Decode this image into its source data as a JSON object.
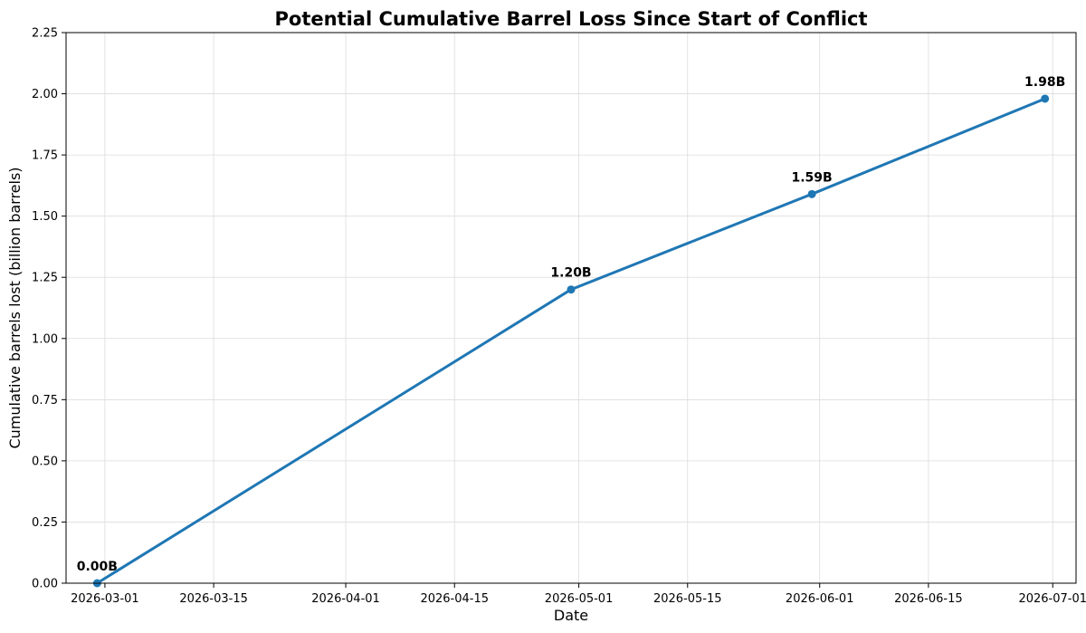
{
  "chart_data": {
    "type": "line",
    "title": "Potential Cumulative Barrel Loss Since Start of Conflict",
    "xlabel": "Date",
    "ylabel": "Cumulative barrels lost (billion barrels)",
    "xlim": [
      "2026-02-24",
      "2026-07-04"
    ],
    "ylim": [
      0,
      2.25
    ],
    "x_ticks": [
      "2026-03-01",
      "2026-03-15",
      "2026-04-01",
      "2026-04-15",
      "2026-05-01",
      "2026-05-15",
      "2026-06-01",
      "2026-06-15",
      "2026-07-01"
    ],
    "y_ticks": [
      0,
      0.25,
      0.5,
      0.75,
      1.0,
      1.25,
      1.5,
      1.75,
      2.0,
      2.25
    ],
    "y_tick_labels": [
      "0.00",
      "0.25",
      "0.50",
      "0.75",
      "1.00",
      "1.25",
      "1.50",
      "1.75",
      "2.00",
      "2.25"
    ],
    "grid": true,
    "series": [
      {
        "x": [
          "2026-02-28",
          "2026-04-30",
          "2026-05-31",
          "2026-06-30"
        ],
        "values": [
          0.0,
          1.2,
          1.59,
          1.98
        ],
        "labels": [
          "0.00B",
          "1.20B",
          "1.59B",
          "1.98B"
        ],
        "color": "#1f77b4",
        "marker": "circle"
      }
    ]
  }
}
